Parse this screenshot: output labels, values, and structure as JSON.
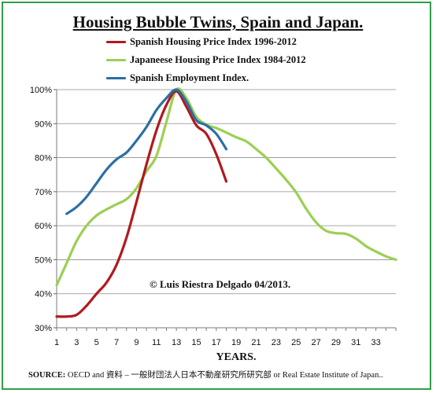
{
  "chart_data": {
    "type": "line",
    "title": "Housing Bubble Twins, Spain and Japan.",
    "xlabel": "YEARS.",
    "ylabel": "",
    "xlim": [
      1,
      35
    ],
    "ylim": [
      0.3,
      1.0
    ],
    "x_ticks": [
      1,
      3,
      5,
      7,
      9,
      11,
      13,
      15,
      17,
      19,
      21,
      23,
      25,
      27,
      29,
      31,
      33
    ],
    "y_ticks": [
      "30%",
      "40%",
      "50%",
      "60%",
      "70%",
      "80%",
      "90%",
      "100%"
    ],
    "y_tick_values": [
      0.3,
      0.4,
      0.5,
      0.6,
      0.7,
      0.8,
      0.9,
      1.0
    ],
    "legend_position": "top",
    "series": [
      {
        "name": "Spanish Housing Price Index 1996-2012",
        "color": "#b01a1f",
        "x": [
          1,
          2,
          3,
          4,
          5,
          6,
          7,
          8,
          9,
          10,
          11,
          12,
          13,
          14,
          15,
          16,
          17,
          18
        ],
        "values": [
          0.333,
          0.333,
          0.338,
          0.365,
          0.4,
          0.433,
          0.485,
          0.565,
          0.67,
          0.78,
          0.88,
          0.955,
          0.995,
          0.95,
          0.895,
          0.87,
          0.81,
          0.73
        ]
      },
      {
        "name": "Japaneese Housing Price Index 1984-2012",
        "color": "#9bcf53",
        "x": [
          1,
          2,
          3,
          4,
          5,
          6,
          7,
          8,
          9,
          10,
          11,
          12,
          13,
          14,
          15,
          16,
          17,
          18,
          19,
          20,
          21,
          22,
          23,
          24,
          25,
          26,
          27,
          28,
          29,
          30,
          31,
          32,
          33,
          34,
          35
        ],
        "values": [
          0.425,
          0.49,
          0.555,
          0.6,
          0.63,
          0.648,
          0.663,
          0.678,
          0.71,
          0.76,
          0.805,
          0.905,
          1.0,
          0.975,
          0.92,
          0.897,
          0.887,
          0.874,
          0.86,
          0.848,
          0.825,
          0.8,
          0.768,
          0.735,
          0.698,
          0.65,
          0.61,
          0.585,
          0.578,
          0.576,
          0.562,
          0.54,
          0.524,
          0.51,
          0.5
        ]
      },
      {
        "name": "Spanish Employment Index.",
        "color": "#2c6fa3",
        "x": [
          2,
          3,
          4,
          5,
          6,
          7,
          8,
          9,
          10,
          11,
          12,
          13,
          14,
          15,
          16,
          17,
          18
        ],
        "values": [
          0.635,
          0.655,
          0.685,
          0.725,
          0.765,
          0.795,
          0.815,
          0.85,
          0.89,
          0.94,
          0.975,
          1.0,
          0.965,
          0.91,
          0.895,
          0.87,
          0.825
        ]
      }
    ],
    "annotation": "© Luis Riestra  Delgado 04/2013.",
    "source_label": "SOURCE:",
    "source_text": "OECD  and   資料 – 一般財団法人日本不動産研究所研究部 or Real Estate Institute of Japan.."
  }
}
